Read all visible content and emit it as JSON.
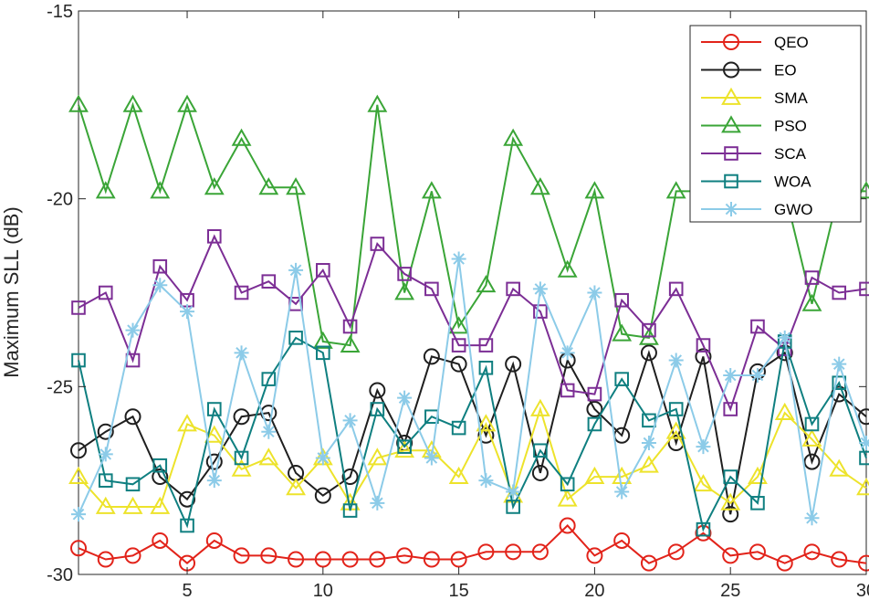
{
  "chart_data": {
    "type": "line",
    "title": "",
    "xlabel": "",
    "ylabel": "Maximum SLL (dB)",
    "xlim": [
      1,
      30
    ],
    "ylim": [
      -30,
      -15
    ],
    "xticks": [
      5,
      10,
      15,
      20,
      25,
      30
    ],
    "yticks": [
      -30,
      -25,
      -20,
      -15
    ],
    "grid": false,
    "legend_position": "top-right",
    "x": [
      1,
      2,
      3,
      4,
      5,
      6,
      7,
      8,
      9,
      10,
      11,
      12,
      13,
      14,
      15,
      16,
      17,
      18,
      19,
      20,
      21,
      22,
      23,
      24,
      25,
      26,
      27,
      28,
      29,
      30
    ],
    "series": [
      {
        "name": "QEO",
        "color": "#e2231a",
        "marker": "circle",
        "values": [
          -29.3,
          -29.6,
          -29.5,
          -29.1,
          -29.7,
          -29.1,
          -29.5,
          -29.5,
          -29.6,
          -29.6,
          -29.6,
          -29.6,
          -29.5,
          -29.6,
          -29.6,
          -29.4,
          -29.4,
          -29.4,
          -28.7,
          -29.5,
          -29.1,
          -29.7,
          -29.4,
          -28.9,
          -29.5,
          -29.4,
          -29.7,
          -29.4,
          -29.6,
          -29.7
        ]
      },
      {
        "name": "EO",
        "color": "#1f1f1f",
        "marker": "circle",
        "values": [
          -26.7,
          -26.2,
          -25.8,
          -27.4,
          -28.0,
          -27.0,
          -25.8,
          -25.7,
          -27.3,
          -27.9,
          -27.4,
          -25.1,
          -26.5,
          -24.2,
          -24.4,
          -26.3,
          -24.4,
          -27.3,
          -24.3,
          -25.6,
          -26.3,
          -24.1,
          -26.5,
          -24.2,
          -28.4,
          -24.6,
          -24.1,
          -27.0,
          -25.2,
          -25.8
        ]
      },
      {
        "name": "SMA",
        "color": "#ede32b",
        "marker": "triangle",
        "values": [
          -27.4,
          -28.2,
          -28.2,
          -28.2,
          -26.0,
          -26.3,
          -27.2,
          -26.9,
          -27.7,
          -26.9,
          -28.1,
          -26.9,
          -26.7,
          -26.7,
          -27.4,
          -26.0,
          -27.9,
          -25.6,
          -28.0,
          -27.4,
          -27.4,
          -27.1,
          -26.2,
          -27.6,
          -28.1,
          -27.4,
          -25.7,
          -26.4,
          -27.2,
          -27.7
        ]
      },
      {
        "name": "PSO",
        "color": "#3aa537",
        "marker": "triangle",
        "values": [
          -17.5,
          -19.8,
          -17.5,
          -19.8,
          -17.5,
          -19.7,
          -18.4,
          -19.7,
          -19.7,
          -23.8,
          -23.9,
          -17.5,
          -22.5,
          -19.8,
          -23.4,
          -22.3,
          -18.4,
          -19.7,
          -21.9,
          -19.8,
          -23.6,
          -23.7,
          -19.8,
          -19.8,
          -19.8,
          -19.8,
          -19.8,
          -22.8,
          -19.8,
          -19.8
        ]
      },
      {
        "name": "SCA",
        "color": "#7c2e95",
        "marker": "square",
        "values": [
          -22.9,
          -22.5,
          -24.3,
          -21.8,
          -22.7,
          -21.0,
          -22.5,
          -22.2,
          -22.8,
          -21.9,
          -23.4,
          -21.2,
          -22.0,
          -22.4,
          -23.9,
          -23.9,
          -22.4,
          -23.0,
          -25.1,
          -25.2,
          -22.7,
          -23.5,
          -22.4,
          -23.9,
          -25.6,
          -23.4,
          -24.0,
          -22.1,
          -22.5,
          -22.4
        ]
      },
      {
        "name": "WOA",
        "color": "#0f7f80",
        "marker": "square",
        "values": [
          -24.3,
          -27.5,
          -27.6,
          -27.1,
          -28.7,
          -25.6,
          -26.9,
          -24.8,
          -23.7,
          -24.1,
          -28.3,
          -25.6,
          -26.6,
          -25.8,
          -26.1,
          -24.5,
          -28.2,
          -26.7,
          -27.6,
          -26.0,
          -24.8,
          -25.9,
          -25.6,
          -28.8,
          -27.4,
          -28.1,
          -23.8,
          -26.0,
          -24.9,
          -26.9
        ]
      },
      {
        "name": "GWO",
        "color": "#8ccbe8",
        "marker": "asterisk",
        "values": [
          -28.4,
          -26.8,
          -23.5,
          -22.3,
          -23.0,
          -27.5,
          -24.1,
          -26.2,
          -21.9,
          -26.9,
          -25.9,
          -28.1,
          -25.3,
          -26.9,
          -21.6,
          -27.5,
          -27.8,
          -22.4,
          -24.1,
          -22.5,
          -27.8,
          -26.5,
          -24.3,
          -26.6,
          -24.7,
          -24.7,
          -23.7,
          -28.5,
          -24.4,
          -26.5
        ]
      }
    ]
  }
}
